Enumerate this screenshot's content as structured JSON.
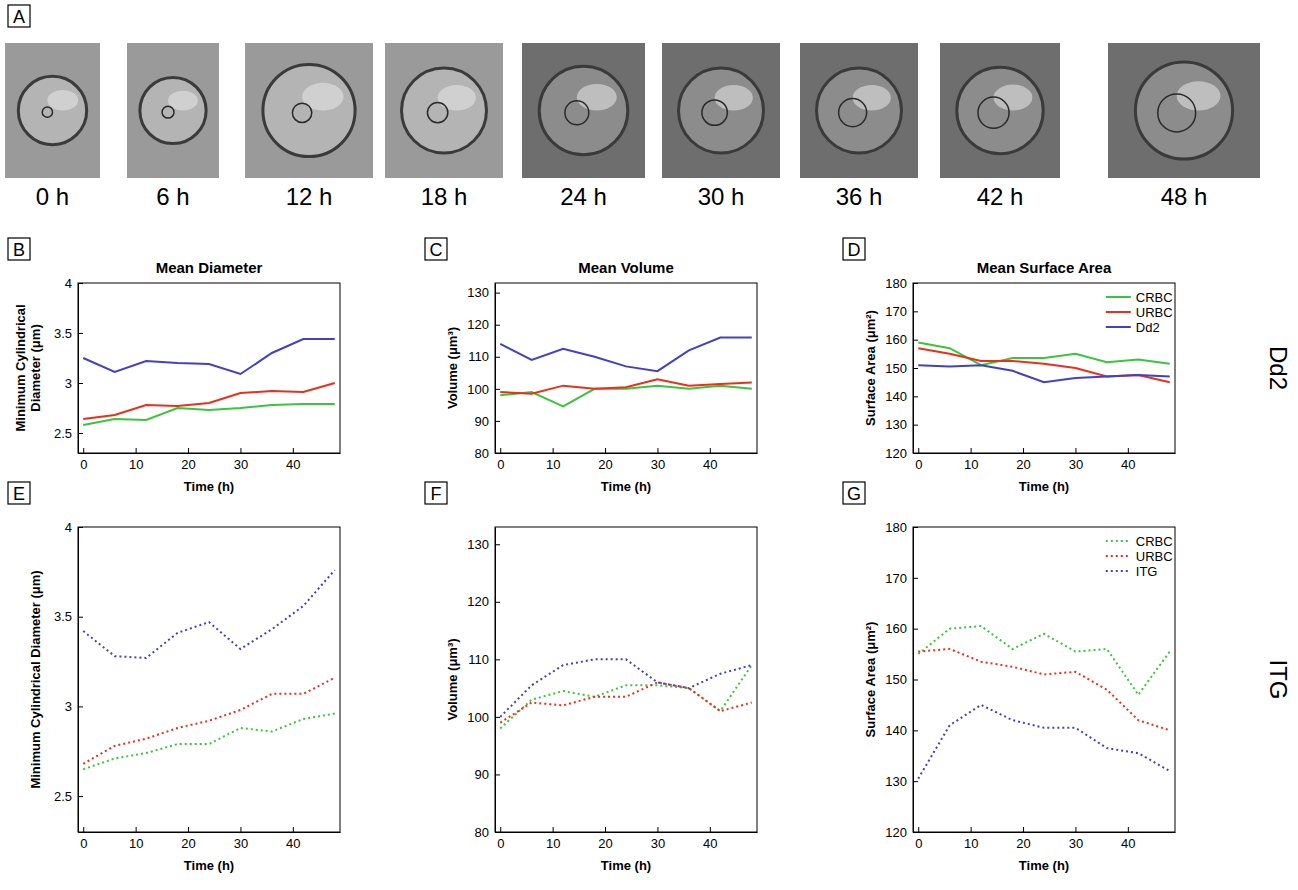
{
  "panel_a": {
    "letter": "A",
    "labels": [
      "0 h",
      "6 h",
      "12 h",
      "18 h",
      "24 h",
      "30 h",
      "36 h",
      "42 h",
      "48 h"
    ]
  },
  "row_labels": [
    "Dd2",
    "ITG"
  ],
  "chart_data": [
    {
      "panel": "B",
      "type": "line",
      "title": "Mean Diameter",
      "xlabel": "Time (h)",
      "ylabel": "Minimum Cylindrical Diameter (μm)",
      "x": [
        0,
        6,
        12,
        18,
        24,
        30,
        36,
        42,
        48
      ],
      "xlim": [
        -1,
        49
      ],
      "xticks": [
        0,
        10,
        20,
        30,
        40
      ],
      "ylim": [
        2.3,
        4
      ],
      "yticks": [
        2.5,
        3,
        3.5,
        4
      ],
      "series": [
        {
          "color": "#3cc43c",
          "line_style": "solid",
          "values": [
            2.58,
            2.64,
            2.63,
            2.75,
            2.73,
            2.75,
            2.78,
            2.79,
            2.79
          ]
        },
        {
          "color": "#e8301c",
          "line_style": "solid",
          "values": [
            2.64,
            2.68,
            2.78,
            2.77,
            2.8,
            2.9,
            2.92,
            2.91,
            3.0
          ]
        },
        {
          "color": "#4040c8",
          "line_style": "solid",
          "values": [
            3.25,
            3.11,
            3.22,
            3.2,
            3.19,
            3.09,
            3.3,
            3.44,
            3.44
          ]
        }
      ]
    },
    {
      "panel": "C",
      "type": "line",
      "title": "Mean Volume",
      "xlabel": "Time (h)",
      "ylabel": "Volume (μm³)",
      "x": [
        0,
        6,
        12,
        18,
        24,
        30,
        36,
        42,
        48
      ],
      "xlim": [
        -1,
        49
      ],
      "xticks": [
        0,
        10,
        20,
        30,
        40
      ],
      "ylim": [
        80,
        133
      ],
      "yticks": [
        80,
        90,
        100,
        110,
        120,
        130
      ],
      "series": [
        {
          "color": "#3cc43c",
          "line_style": "solid",
          "values": [
            98,
            99,
            94.5,
            100,
            100,
            101,
            100,
            101,
            100
          ]
        },
        {
          "color": "#e8301c",
          "line_style": "solid",
          "values": [
            99,
            98.5,
            101,
            100,
            100.5,
            103,
            101,
            101.5,
            102
          ]
        },
        {
          "color": "#4040c8",
          "line_style": "solid",
          "values": [
            114,
            109,
            112.5,
            110,
            107,
            105.5,
            112,
            116,
            116
          ]
        }
      ]
    },
    {
      "panel": "D",
      "type": "line",
      "title": "Mean Surface Area",
      "xlabel": "Time (h)",
      "ylabel": "Surface Area (μm²)",
      "x": [
        0,
        6,
        12,
        18,
        24,
        30,
        36,
        42,
        48
      ],
      "xlim": [
        -1,
        49
      ],
      "xticks": [
        0,
        10,
        20,
        30,
        40
      ],
      "ylim": [
        120,
        180
      ],
      "yticks": [
        120,
        130,
        140,
        150,
        160,
        170,
        180
      ],
      "legend": "upper right",
      "series": [
        {
          "name": "CRBC",
          "color": "#3cc43c",
          "line_style": "solid",
          "values": [
            159,
            157,
            151,
            153.5,
            153.5,
            155,
            152,
            153,
            151.5
          ]
        },
        {
          "name": "URBC",
          "color": "#e8301c",
          "line_style": "solid",
          "values": [
            157,
            155,
            152.5,
            152.5,
            151.5,
            150,
            147,
            147.5,
            145
          ]
        },
        {
          "name": "Dd2",
          "color": "#4040c8",
          "line_style": "solid",
          "values": [
            151,
            150.5,
            151,
            149,
            145,
            146.5,
            147,
            147.5,
            147
          ]
        }
      ]
    },
    {
      "panel": "E",
      "type": "line",
      "xlabel": "Time (h)",
      "ylabel": "Minimum Cylindrical Diameter (μm)",
      "x": [
        0,
        6,
        12,
        18,
        24,
        30,
        36,
        42,
        48
      ],
      "xlim": [
        -1,
        49
      ],
      "xticks": [
        0,
        10,
        20,
        30,
        40
      ],
      "ylim": [
        2.3,
        4
      ],
      "yticks": [
        2.5,
        3,
        3.5,
        4
      ],
      "series": [
        {
          "color": "#3cc43c",
          "line_style": "dotted",
          "values": [
            2.65,
            2.71,
            2.74,
            2.79,
            2.79,
            2.88,
            2.86,
            2.93,
            2.96
          ]
        },
        {
          "color": "#e8301c",
          "line_style": "dotted",
          "values": [
            2.68,
            2.78,
            2.82,
            2.88,
            2.92,
            2.98,
            3.07,
            3.07,
            3.16
          ]
        },
        {
          "color": "#4040c8",
          "line_style": "dotted",
          "values": [
            3.42,
            3.28,
            3.27,
            3.41,
            3.47,
            3.32,
            3.43,
            3.56,
            3.76
          ]
        }
      ]
    },
    {
      "panel": "F",
      "type": "line",
      "xlabel": "Time (h)",
      "ylabel": "Volume (μm³)",
      "x": [
        0,
        6,
        12,
        18,
        24,
        30,
        36,
        42,
        48
      ],
      "xlim": [
        -1,
        49
      ],
      "xticks": [
        0,
        10,
        20,
        30,
        40
      ],
      "ylim": [
        80,
        133
      ],
      "yticks": [
        80,
        90,
        100,
        110,
        120,
        130
      ],
      "series": [
        {
          "color": "#3cc43c",
          "line_style": "dotted",
          "values": [
            98,
            103,
            104.5,
            103.5,
            105.5,
            105.5,
            105,
            101,
            109
          ]
        },
        {
          "color": "#e8301c",
          "line_style": "dotted",
          "values": [
            99,
            102.5,
            102,
            103.5,
            103.5,
            106,
            105,
            101,
            102.5
          ]
        },
        {
          "color": "#4040c8",
          "line_style": "dotted",
          "values": [
            100,
            105.5,
            109,
            110,
            110,
            106,
            105,
            107.5,
            109
          ]
        }
      ]
    },
    {
      "panel": "G",
      "type": "line",
      "xlabel": "Time (h)",
      "ylabel": "Surface Area (μm²)",
      "x": [
        0,
        6,
        12,
        18,
        24,
        30,
        36,
        42,
        48
      ],
      "xlim": [
        -1,
        49
      ],
      "xticks": [
        0,
        10,
        20,
        30,
        40
      ],
      "ylim": [
        120,
        180
      ],
      "yticks": [
        120,
        130,
        140,
        150,
        160,
        170,
        180
      ],
      "legend": "upper right",
      "series": [
        {
          "name": "CRBC",
          "color": "#3cc43c",
          "line_style": "dotted",
          "values": [
            155,
            160,
            160.5,
            156,
            159,
            155.5,
            156,
            147,
            155.5
          ]
        },
        {
          "name": "URBC",
          "color": "#e8301c",
          "line_style": "dotted",
          "values": [
            155.5,
            156,
            153.5,
            152.5,
            151,
            151.5,
            148,
            142,
            140
          ]
        },
        {
          "name": "ITG",
          "color": "#4040c8",
          "line_style": "dotted",
          "values": [
            130.5,
            141,
            145,
            142,
            140.5,
            140.5,
            136.5,
            135.5,
            132
          ]
        }
      ]
    }
  ]
}
